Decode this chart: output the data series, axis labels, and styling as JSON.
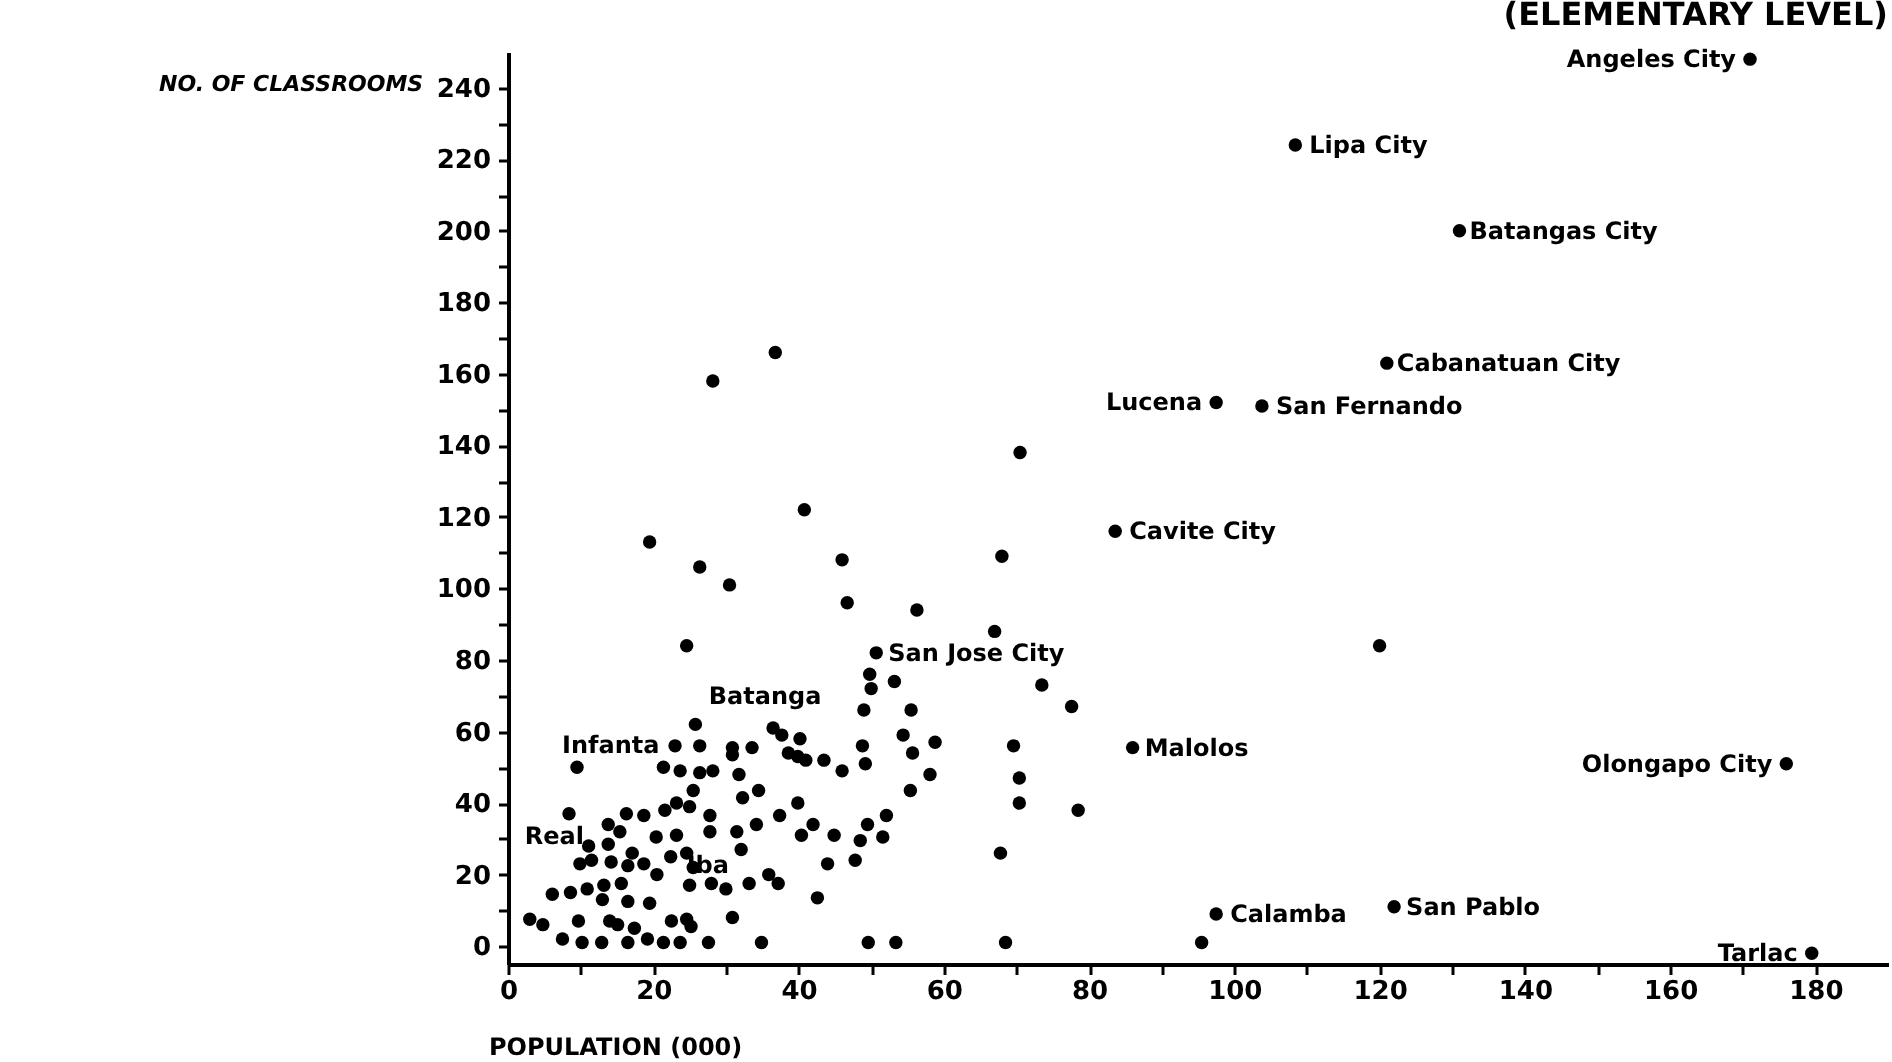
{
  "chart_data": {
    "type": "scatter",
    "title": "(ELEMENTARY LEVEL)",
    "xlabel": "POPULATION (000)",
    "ylabel": "NO. OF CLASSROOMS",
    "xlim": [
      0,
      190
    ],
    "ylim": [
      -5,
      250
    ],
    "xticks": [
      0,
      {
        "value": 10,
        "label": null
      },
      20,
      {
        "value": 30,
        "label": null
      },
      40,
      {
        "value": 50,
        "label": null
      },
      60,
      {
        "value": 70,
        "label": null
      },
      80,
      {
        "value": 90,
        "label": null
      },
      100,
      {
        "value": 110,
        "label": null
      },
      120,
      {
        "value": 130,
        "label": null
      },
      140,
      {
        "value": 150,
        "label": null
      },
      160,
      {
        "value": 170,
        "label": null
      },
      180
    ],
    "yticks": [
      0,
      {
        "value": 10,
        "label": null
      },
      20,
      {
        "value": 30,
        "label": null
      },
      40,
      {
        "value": 50,
        "label": null
      },
      60,
      {
        "value": 70,
        "label": null
      },
      80,
      {
        "value": 90,
        "label": null
      },
      100,
      {
        "value": 110,
        "label": null
      },
      120,
      {
        "value": 130,
        "label": null
      },
      140,
      {
        "value": 150,
        "label": null
      },
      160,
      {
        "value": 170,
        "label": null
      },
      180,
      {
        "value": 190,
        "label": null
      },
      200,
      {
        "value": 210,
        "label": null
      },
      220,
      {
        "value": 230,
        "label": null
      },
      240
    ],
    "grid": false,
    "marker": "circle",
    "series": [
      {
        "color": "#000000",
        "x": [
          171,
          108.4,
          131,
          121,
          97.5,
          103.8,
          83.6,
          50.7,
          36.5,
          21.4,
          9.9,
          22.4,
          86,
          176,
          97.5,
          122,
          179.5,
          70.5,
          68,
          120,
          95.5,
          73.5,
          77.6,
          69.6,
          70.4,
          70.4,
          78.5,
          67.8,
          68.5,
          67,
          26.4,
          30.5,
          46.7,
          56.3,
          24.6,
          49.8,
          50,
          53.2,
          49,
          55.5,
          25.8,
          37.7,
          40.2,
          48.8,
          54.4,
          58.8,
          23,
          26.4,
          30.9,
          33.6,
          30.9,
          38.6,
          39.9,
          41,
          43.5,
          46,
          49.2,
          55.7,
          58.1,
          55.4,
          9.5,
          23.7,
          26.4,
          28.2,
          31.8,
          25.5,
          23.2,
          25,
          32.3,
          34.5,
          39.9,
          8.4,
          16.3,
          18.7,
          13.8,
          15.4,
          21.6,
          27.8,
          37.4,
          34.2,
          31.5,
          20.4,
          23.2,
          27.8,
          42,
          40.4,
          44.9,
          48.5,
          49.5,
          51.6,
          52.1,
          32.1,
          11.1,
          13.8,
          17.1,
          11.5,
          14.2,
          16.5,
          18.7,
          20.5,
          24.6,
          25.5,
          44,
          47.8,
          35.9,
          37.2,
          33.2,
          25,
          28,
          30,
          6.1,
          8.6,
          10.9,
          13.2,
          15.6,
          13,
          16.5,
          19.5,
          42.6,
          30.9,
          3,
          4.8,
          9.7,
          14,
          15.1,
          17.4,
          22.5,
          24.6,
          25.2,
          7.5,
          10.2,
          12.9,
          16.5,
          19.2,
          21.4,
          23.7,
          27.6,
          34.9,
          49.6,
          53.4,
          28.2,
          36.8,
          40.8,
          19.5,
          46
        ],
        "values": [
          248,
          224,
          200,
          163,
          152,
          151,
          116,
          82,
          61,
          50,
          23,
          25,
          55.5,
          51,
          9,
          11,
          -2,
          138,
          109,
          84,
          1,
          73,
          67,
          56,
          47,
          40,
          38,
          26,
          1,
          88,
          106,
          101,
          96,
          94,
          84,
          76,
          72,
          74,
          66,
          66,
          62,
          59,
          58,
          56,
          59,
          57,
          56,
          56,
          55.5,
          55.5,
          53.5,
          54,
          53,
          52,
          52,
          49,
          51,
          54,
          48,
          43.5,
          50,
          49,
          48.5,
          49,
          48,
          43.5,
          40,
          39,
          41.5,
          43.5,
          40,
          37,
          37,
          36.5,
          34,
          32,
          38,
          36.5,
          36.5,
          34,
          32,
          30.5,
          31,
          32,
          34,
          31,
          31,
          29.5,
          34,
          30.5,
          36.5,
          27,
          28,
          28.5,
          26,
          24,
          23.5,
          22.5,
          23,
          20,
          26,
          22,
          23,
          24,
          20,
          17.5,
          17.5,
          17,
          17.5,
          16,
          14.5,
          15,
          16,
          17,
          17.5,
          13,
          12.5,
          12,
          13.5,
          8,
          7.5,
          6,
          7,
          7,
          6,
          5,
          7,
          7.5,
          5.5,
          2,
          1,
          1,
          1,
          2,
          1,
          1,
          1,
          1,
          1,
          1,
          158,
          166,
          122,
          113,
          108
        ]
      }
    ],
    "annotations": [
      {
        "text": "Angeles City",
        "x": 171,
        "y": 248
      },
      {
        "text": "Lipa City",
        "x": 108.4,
        "y": 224
      },
      {
        "text": "Batangas City",
        "x": 131,
        "y": 200
      },
      {
        "text": "Cabanatuan City",
        "x": 121,
        "y": 163
      },
      {
        "text": "Lucena",
        "x": 97.5,
        "y": 152
      },
      {
        "text": "San Fernando",
        "x": 103.8,
        "y": 151
      },
      {
        "text": "Cavite City",
        "x": 83.6,
        "y": 116
      },
      {
        "text": "San Jose City",
        "x": 50.7,
        "y": 82
      },
      {
        "text": "Batanga",
        "x": 36.5,
        "y": 61
      },
      {
        "text": "Infanta",
        "x": 21.4,
        "y": 50
      },
      {
        "text": "Real",
        "x": 9.9,
        "y": 23
      },
      {
        "text": "Iba",
        "x": 22.4,
        "y": 25
      },
      {
        "text": "Malolos",
        "x": 86,
        "y": 55.5
      },
      {
        "text": "Olongapo City",
        "x": 176,
        "y": 51
      },
      {
        "text": "Calamba",
        "x": 97.5,
        "y": 9
      },
      {
        "text": "San Pablo",
        "x": 122,
        "y": 11
      },
      {
        "text": "Tarlac",
        "x": 179.5,
        "y": -2
      }
    ]
  }
}
